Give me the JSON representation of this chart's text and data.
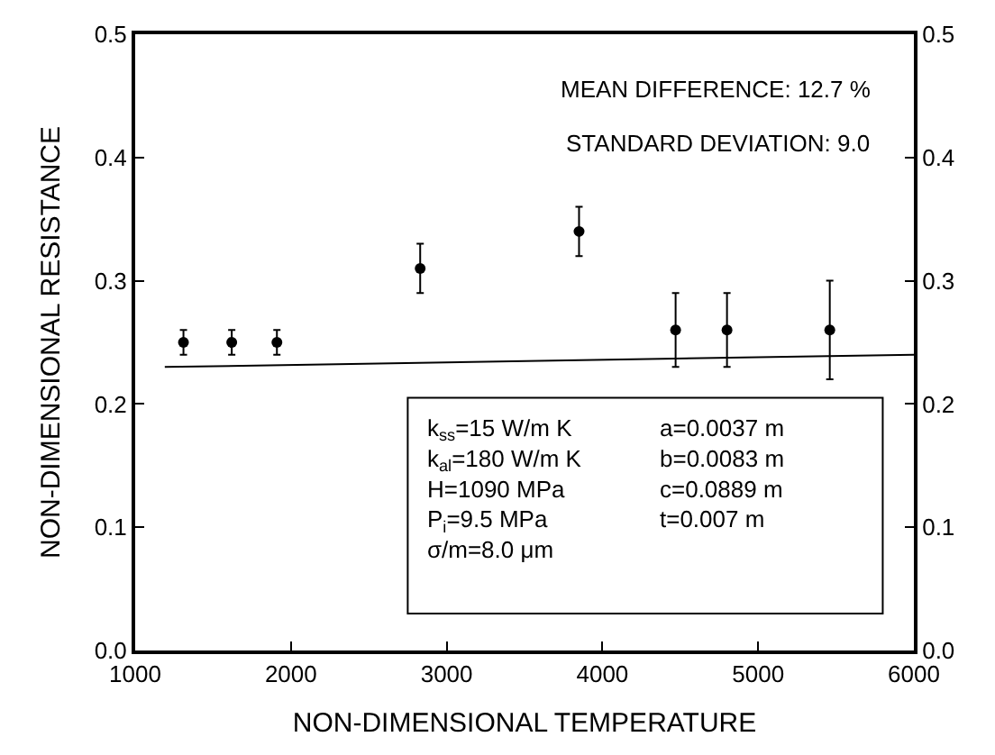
{
  "chart_data": {
    "type": "scatter",
    "xlabel": "NON-DIMENSIONAL TEMPERATURE",
    "ylabel": "NON-DIMENSIONAL RESISTANCE",
    "xlim": [
      1000,
      6000
    ],
    "xticks": [
      1000,
      2000,
      3000,
      4000,
      5000,
      6000
    ],
    "ylim": [
      0.0,
      0.5
    ],
    "yticks": [
      {
        "value": 0,
        "label": "0.0"
      },
      0.1,
      0.2,
      0.3,
      0.4,
      0.5
    ],
    "y2lim": [
      0.0,
      0.5
    ],
    "y2ticks": [
      {
        "value": 0,
        "label": "0.0"
      },
      0.1,
      0.2,
      0.3,
      0.4,
      0.5
    ],
    "marker": "circle",
    "legend": false,
    "series": [
      {
        "color": "#000000",
        "x": [
          1310,
          1620,
          1910,
          2830,
          3850,
          4470,
          4800,
          5460
        ],
        "values": [
          0.25,
          0.25,
          0.25,
          0.31,
          0.34,
          0.26,
          0.26,
          0.26
        ],
        "errors": [
          0.01,
          0.01,
          0.01,
          0.02,
          0.02,
          0.03,
          0.03,
          0.04
        ]
      },
      {
        "type": "line",
        "color": "#000000",
        "marker": "none",
        "x": [
          1190,
          6000
        ],
        "values": [
          0.23,
          0.24
        ]
      }
    ],
    "annotations": [
      "MEAN DIFFERENCE: 12.7 %",
      "STANDARD DEVIATION: 9.0",
      "k$_{ss}$=15 W/m K\nk$_{al}$=180 W/m K\nH=1090 MPa\nP$_{i}$=9.5 MPa\nσ/m=8.0 μm",
      "a=0.0037 m\nb=0.0083 m\nc=0.0889 m\nt=0.007 m"
    ]
  }
}
